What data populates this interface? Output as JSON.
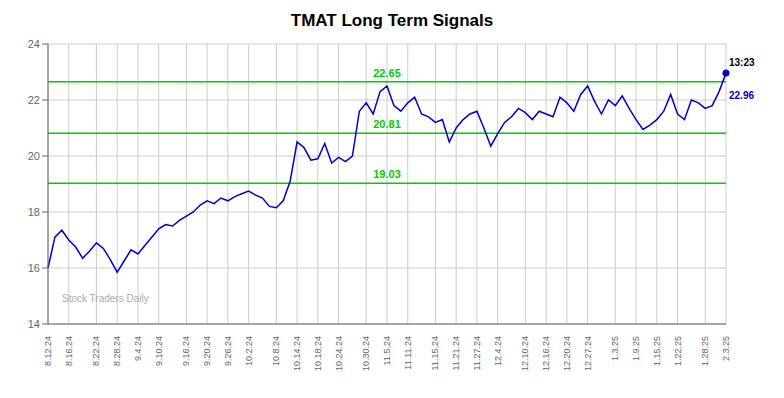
{
  "chart_data": {
    "type": "line",
    "title": "TMAT Long Term Signals",
    "color": "#0000cc",
    "grid": true,
    "ylim": [
      14,
      24
    ],
    "yticks": [
      14,
      16,
      18,
      20,
      22,
      24
    ],
    "hlines": [
      {
        "value": 19.03,
        "label": "19.03",
        "color": "#00cc00"
      },
      {
        "value": 20.81,
        "label": "20.81",
        "color": "#00cc00"
      },
      {
        "value": 22.65,
        "label": "22.65",
        "color": "#00cc00"
      }
    ],
    "watermark": "Stock Traders Daily",
    "annotations": [
      "13:23",
      "22.96"
    ],
    "categories": [
      "8.12.24",
      null,
      null,
      "8.16.24",
      null,
      null,
      null,
      "8.22.24",
      null,
      null,
      "8.28.24",
      null,
      null,
      "9.4.24",
      null,
      null,
      "9.10.24",
      null,
      null,
      null,
      "9.16.24",
      null,
      null,
      "9.20.24",
      null,
      null,
      "9.26.24",
      null,
      null,
      "10.2.24",
      null,
      null,
      null,
      "10.8.24",
      null,
      null,
      "10.14.24",
      null,
      null,
      "10.18.24",
      null,
      null,
      "10.24.24",
      null,
      null,
      null,
      "10.30.24",
      null,
      null,
      "11.5.24",
      null,
      null,
      "11.11.24",
      null,
      null,
      null,
      "11.15.24",
      null,
      null,
      "11.21.24",
      null,
      null,
      "11.27.24",
      null,
      null,
      "12.4.24",
      null,
      null,
      null,
      "12.10.24",
      null,
      null,
      "12.16.24",
      null,
      null,
      "12.20.24",
      null,
      null,
      "12.27.24",
      null,
      null,
      null,
      "1.3.25",
      null,
      null,
      "1.9.25",
      null,
      null,
      "1.15.25",
      null,
      null,
      "1.22.25",
      null,
      null,
      null,
      "1.28.25",
      null,
      null,
      "2.3.25"
    ],
    "values": [
      16.0,
      17.1,
      17.35,
      17.0,
      16.75,
      16.35,
      16.6,
      16.9,
      16.7,
      16.3,
      15.85,
      16.25,
      16.65,
      16.5,
      16.8,
      17.1,
      17.4,
      17.55,
      17.5,
      17.7,
      17.85,
      18.0,
      18.25,
      18.4,
      18.3,
      18.5,
      18.4,
      18.55,
      18.65,
      18.75,
      18.6,
      18.5,
      18.2,
      18.15,
      18.4,
      19.1,
      20.5,
      20.3,
      19.85,
      19.9,
      20.45,
      19.75,
      19.95,
      19.8,
      20.0,
      21.6,
      21.9,
      21.5,
      22.3,
      22.5,
      21.8,
      21.6,
      21.9,
      22.1,
      21.5,
      21.4,
      21.2,
      21.3,
      20.5,
      21.0,
      21.3,
      21.5,
      21.6,
      21.0,
      20.35,
      20.8,
      21.2,
      21.4,
      21.7,
      21.55,
      21.3,
      21.6,
      21.5,
      21.4,
      22.1,
      21.9,
      21.6,
      22.2,
      22.5,
      21.95,
      21.5,
      22.0,
      21.8,
      22.15,
      21.7,
      21.3,
      20.95,
      21.1,
      21.3,
      21.6,
      22.2,
      21.5,
      21.3,
      22.0,
      21.9,
      21.7,
      21.8,
      22.3,
      22.96
    ]
  }
}
